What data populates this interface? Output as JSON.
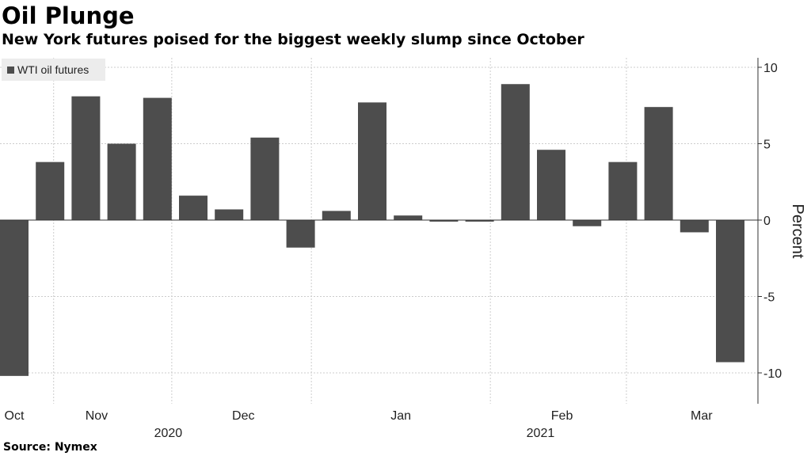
{
  "title": "Oil Plunge",
  "subtitle": "New York futures poised for the biggest weekly slump since October",
  "source": "Source: Nymex",
  "colors": {
    "bar": "#4d4d4d",
    "grid": "#cccccc",
    "legend_bg": "#ececec",
    "axis": "#333333"
  },
  "chart_data": {
    "type": "bar",
    "title": "Oil Plunge",
    "subtitle": "New York futures poised for the biggest weekly slump since October",
    "series": [
      {
        "name": "WTI oil futures",
        "values": [
          -10.2,
          3.8,
          8.1,
          5.0,
          8.0,
          1.6,
          0.7,
          5.4,
          -1.8,
          0.6,
          7.7,
          0.3,
          -0.1,
          -0.1,
          8.9,
          4.6,
          -0.4,
          3.8,
          7.4,
          -0.8,
          -9.3
        ]
      }
    ],
    "ylabel": "Percent",
    "ylim": [
      -12,
      11
    ],
    "yticks": [
      10,
      5,
      0,
      -5,
      -10
    ],
    "month_labels": [
      "Oct",
      "Nov",
      "Dec",
      "Jan",
      "Feb",
      "Mar"
    ],
    "month_label_bar_index": [
      0,
      2.3,
      6.4,
      10.8,
      15.3,
      19.2
    ],
    "year_labels": [
      "2020",
      "2021"
    ],
    "year_label_bar_index": [
      4.3,
      14.7
    ],
    "legend_placement": "top-left",
    "grid": true
  }
}
